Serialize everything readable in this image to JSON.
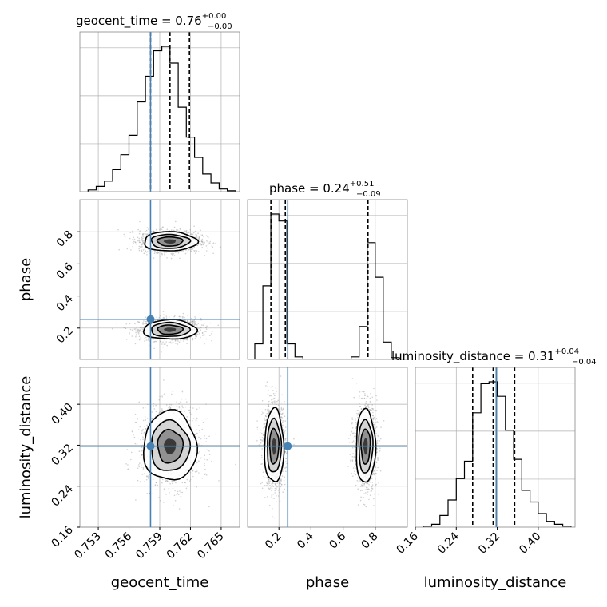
{
  "chart_data": {
    "type": "corner",
    "parameters": [
      "geocent_time",
      "phase",
      "luminosity_distance"
    ],
    "axis_labels": [
      "geocent_time",
      "phase",
      "luminosity_distance"
    ],
    "truths": {
      "geocent_time": 0.7581,
      "phase": 0.255,
      "luminosity_distance": 0.318
    },
    "colors": {
      "truth": "#4682b4",
      "hist": "#000000",
      "grid": "#b0b0b0",
      "density": "#000000",
      "frame": "#888888"
    },
    "ranges": {
      "geocent_time": [
        0.7512,
        0.7668
      ],
      "phase": [
        0.005,
        1.0
      ],
      "luminosity_distance": [
        0.16,
        0.472
      ]
    },
    "grid": true,
    "ticks": {
      "geocent_time": [
        0.753,
        0.756,
        0.759,
        0.762,
        0.765
      ],
      "geocent_time_labels": [
        "0.753",
        "0.756",
        "0.759",
        "0.762",
        "0.765"
      ],
      "phase_y": [
        0.2,
        0.4,
        0.6,
        0.8
      ],
      "phase_y_labels": [
        "0.2",
        "0.4",
        "0.6",
        "0.8"
      ],
      "phase_x": [
        0.2,
        0.4,
        0.6,
        0.8
      ],
      "phase_x_labels": [
        "0.2",
        "0.4",
        "0.6",
        "0.8"
      ],
      "luminosity_distance_y": [
        0.16,
        0.24,
        0.32,
        0.4
      ],
      "luminosity_distance_y_labels": [
        "0.16",
        "0.24",
        "0.32",
        "0.40"
      ],
      "luminosity_distance_x": [
        0.16,
        0.24,
        0.32,
        0.4
      ],
      "luminosity_distance_x_labels": [
        "0.16",
        "0.24",
        "0.32",
        "0.40"
      ]
    },
    "titles": {
      "geocent_time": {
        "prefix": "geocent_time = ",
        "value": "0.76",
        "plus": "+0.00",
        "minus": "−0.00"
      },
      "phase": {
        "prefix": "phase = ",
        "value": "0.24",
        "plus": "+0.51",
        "minus": "−0.09"
      },
      "luminosity_distance": {
        "prefix": "luminosity_distance = ",
        "value": "0.31",
        "plus": "+0.04",
        "minus": "−0.04"
      }
    },
    "quantiles": {
      "geocent_time": [
        0.7581,
        0.76,
        0.7619
      ],
      "phase": [
        0.15,
        0.24,
        0.755
      ],
      "luminosity_distance": [
        0.272,
        0.312,
        0.354
      ]
    },
    "histograms": {
      "geocent_time": {
        "edges": [
          0.752,
          0.7528,
          0.7536,
          0.7544,
          0.7552,
          0.756,
          0.7568,
          0.7576,
          0.7584,
          0.7592,
          0.76,
          0.7608,
          0.7616,
          0.7624,
          0.7632,
          0.764,
          0.7648,
          0.7656,
          0.7664
        ],
        "counts": [
          2,
          6,
          12,
          25,
          42,
          64,
          102,
          131,
          160,
          165,
          146,
          96,
          62,
          39,
          20,
          10,
          3,
          1
        ]
      },
      "phase": {
        "edges": [
          0.05,
          0.1,
          0.15,
          0.2,
          0.25,
          0.3,
          0.35,
          0.4,
          0.45,
          0.5,
          0.55,
          0.6,
          0.65,
          0.7,
          0.75,
          0.8,
          0.85,
          0.9,
          0.95,
          1.0
        ],
        "counts": [
          18,
          85,
          168,
          160,
          18,
          3,
          0,
          0,
          0,
          0,
          0,
          0,
          3,
          38,
          135,
          95,
          20,
          2,
          0
        ]
      },
      "luminosity_distance": {
        "edges": [
          0.176,
          0.192,
          0.208,
          0.224,
          0.24,
          0.256,
          0.272,
          0.288,
          0.304,
          0.32,
          0.336,
          0.352,
          0.368,
          0.384,
          0.4,
          0.416,
          0.432,
          0.448,
          0.464
        ],
        "counts": [
          1,
          3,
          12,
          28,
          50,
          68,
          118,
          148,
          150,
          135,
          100,
          70,
          38,
          26,
          14,
          6,
          3,
          1
        ]
      }
    },
    "density_modes": {
      "geocent_time_vs_phase": [
        {
          "x": 0.76,
          "y": 0.19,
          "sx": 0.0013,
          "sy": 0.03
        },
        {
          "x": 0.76,
          "y": 0.74,
          "sx": 0.0013,
          "sy": 0.03
        }
      ],
      "geocent_time_vs_luminosity_distance": [
        {
          "x": 0.76,
          "y": 0.318,
          "sx": 0.0013,
          "sy": 0.034
        }
      ],
      "phase_vs_luminosity_distance": [
        {
          "x": 0.17,
          "y": 0.318,
          "sx": 0.03,
          "sy": 0.036
        },
        {
          "x": 0.74,
          "y": 0.318,
          "sx": 0.03,
          "sy": 0.036
        }
      ]
    }
  }
}
